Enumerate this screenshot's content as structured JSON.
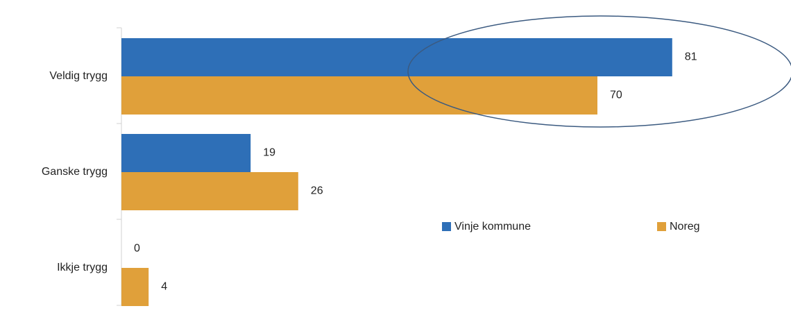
{
  "chart_data": {
    "type": "bar",
    "orientation": "horizontal",
    "categories": [
      "Veldig trygg",
      "Ganske trygg",
      "Ikkje trygg"
    ],
    "series": [
      {
        "name": "Vinje kommune",
        "color": "#2e6fb7",
        "values": [
          81,
          19,
          0
        ]
      },
      {
        "name": "Noreg",
        "color": "#e0a03a",
        "values": [
          70,
          26,
          4
        ]
      }
    ]
  }
}
